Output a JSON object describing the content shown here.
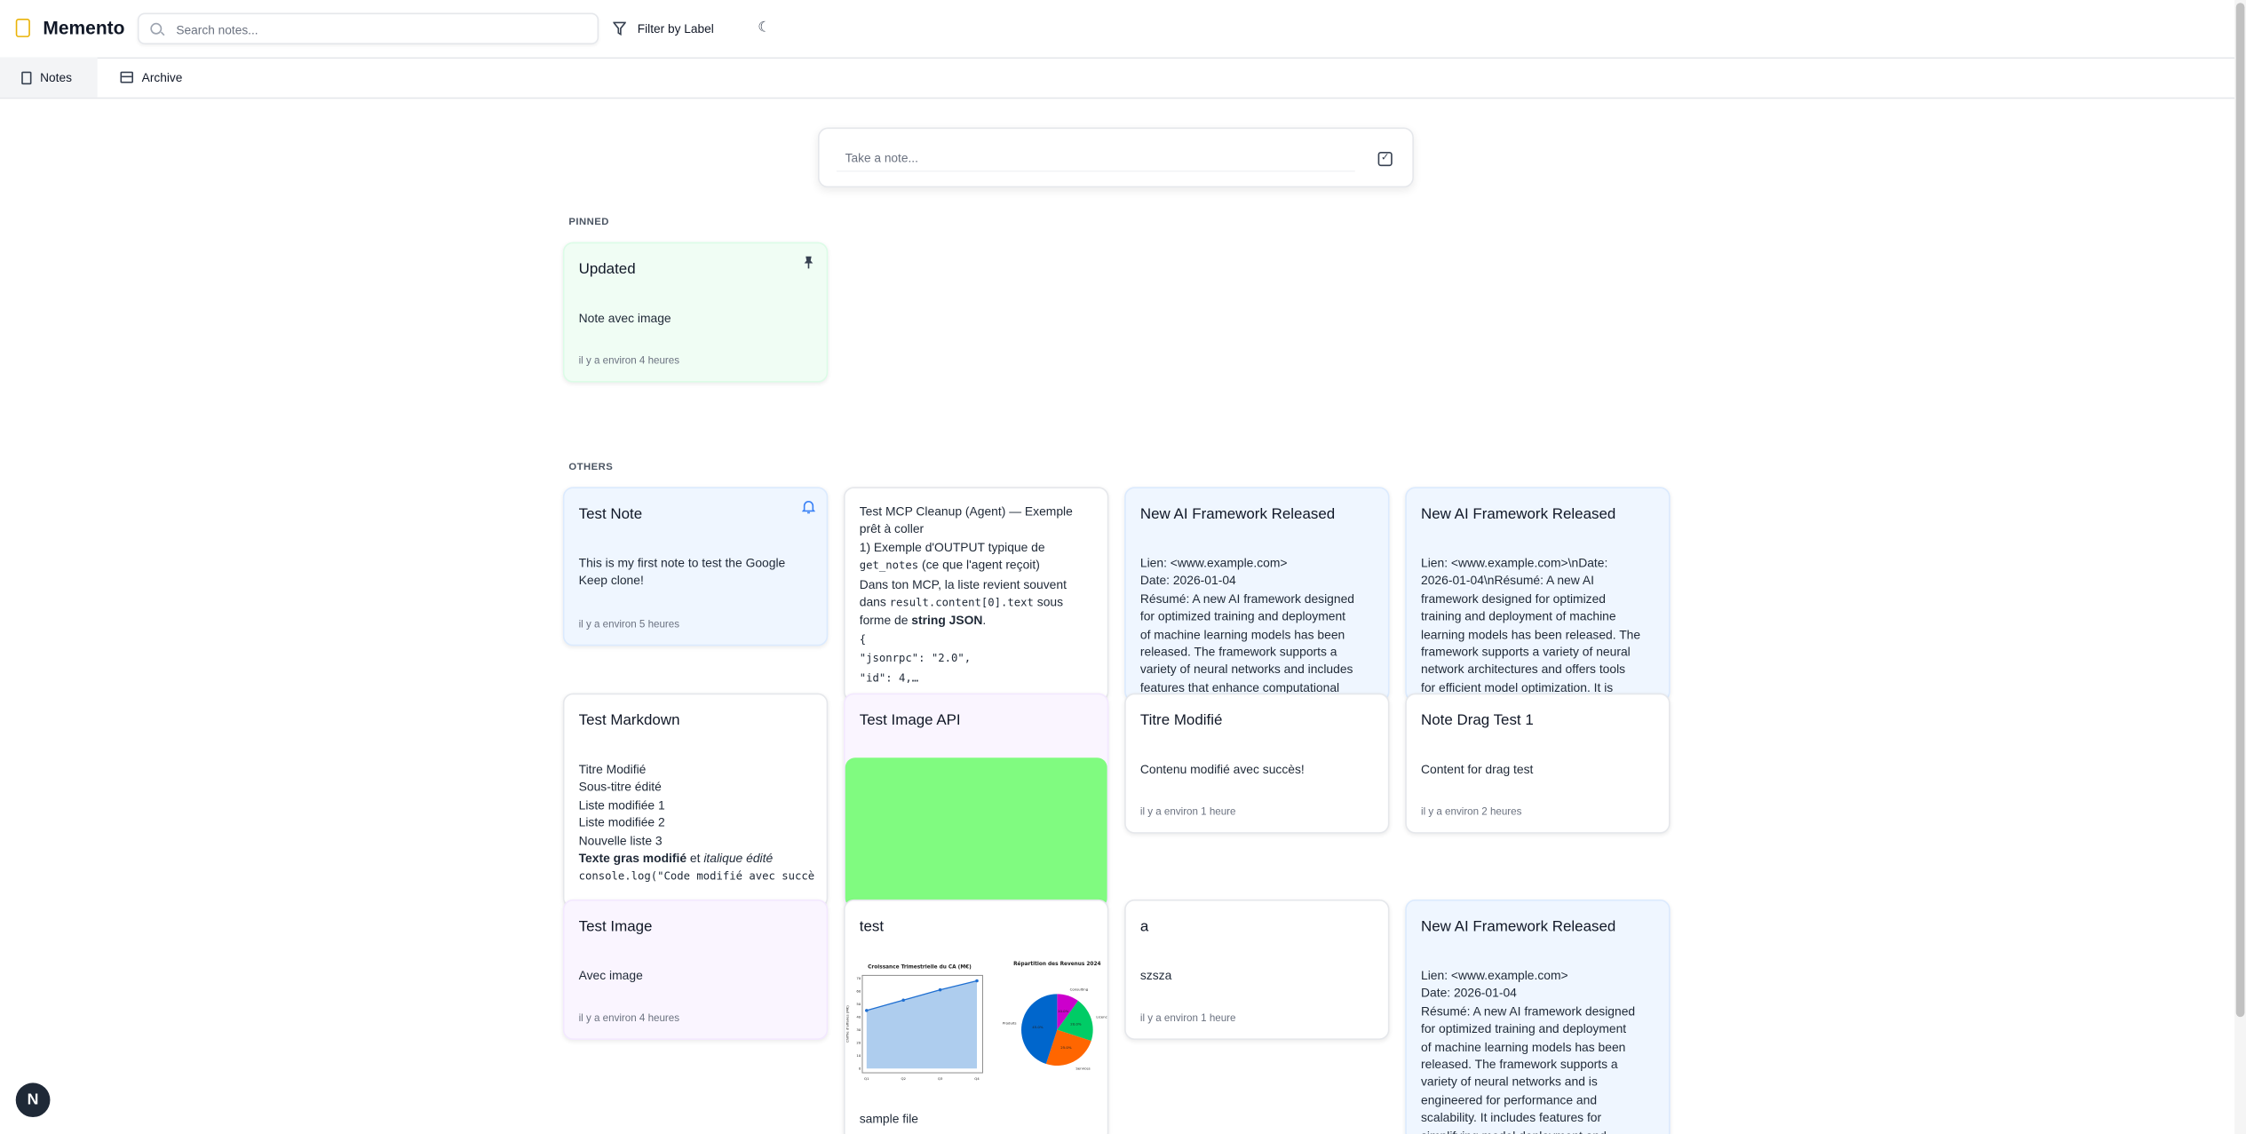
{
  "app": {
    "title": "Memento"
  },
  "header": {
    "search_placeholder": "Search notes...",
    "filter_label": "Filter by Label",
    "theme_icon": "moon-icon"
  },
  "tabs": [
    {
      "label": "Notes",
      "icon": "file-icon",
      "active": true
    },
    {
      "label": "Archive",
      "icon": "archive-icon",
      "active": false
    }
  ],
  "composer": {
    "placeholder": "Take a note...",
    "icon": "checkbox-icon"
  },
  "sections": {
    "pinned": "PINNED",
    "others": "OTHERS"
  },
  "colors": {
    "blue": "#eff6ff",
    "green": "#f0fdf4",
    "purple": "#faf5ff",
    "white": "#ffffff",
    "image_green": "#80fb80",
    "accent": "#3b82f6"
  },
  "pinned": [
    {
      "title": "Updated",
      "icon": "pin-icon",
      "color": "green",
      "body": [
        [
          {
            "t": "Note avec image"
          }
        ]
      ],
      "time": "il y a environ 4 heures"
    }
  ],
  "others": [
    {
      "title": "Test Note",
      "icon": "bell-icon",
      "color": "blue",
      "body": [
        [
          {
            "t": "This is my first note to test the Google"
          }
        ],
        [
          {
            "t": "Keep clone!"
          }
        ]
      ],
      "time": "il y a environ 5 heures"
    },
    {
      "title": "",
      "color": "white",
      "body": [
        [
          {
            "t": "Test MCP Cleanup (Agent) — Exemple"
          }
        ],
        [
          {
            "t": "prêt à coller"
          }
        ],
        [
          {
            "t": "1) Exemple d'OUTPUT typique de"
          }
        ],
        [
          {
            "t": "get_notes",
            "s": "code"
          },
          {
            "t": " (ce que l'agent reçoit)"
          }
        ],
        [
          {
            "t": "Dans ton MCP, la liste revient souvent"
          }
        ],
        [
          {
            "t": "dans "
          },
          {
            "t": "result.content[0].text",
            "s": "code"
          },
          {
            "t": " sous"
          }
        ],
        [
          {
            "t": "forme de "
          },
          {
            "t": "string JSON",
            "s": "b"
          },
          {
            "t": "."
          }
        ],
        [
          {
            "t": "{",
            "s": "code"
          }
        ],
        [
          {
            "t": "  \"jsonrpc\": \"2.0\",",
            "s": "code"
          }
        ],
        [
          {
            "t": "  \"id\": 4,…",
            "s": "code"
          }
        ]
      ]
    },
    {
      "title": "New AI Framework Released",
      "color": "blue",
      "body": [
        [
          {
            "t": "Lien: <www.example.com>"
          }
        ],
        [
          {
            "t": "Date: 2026-01-04"
          }
        ],
        [
          {
            "t": "Résumé: A new AI framework designed"
          }
        ],
        [
          {
            "t": "for optimized training and deployment"
          }
        ],
        [
          {
            "t": "of machine learning models has been"
          }
        ],
        [
          {
            "t": "released. The framework supports a"
          }
        ],
        [
          {
            "t": "variety of neural networks and includes"
          }
        ],
        [
          {
            "t": "features that enhance computational"
          }
        ]
      ]
    },
    {
      "title": "New AI Framework Released",
      "color": "blue",
      "body": [
        [
          {
            "t": "Lien: <www.example.com>\\nDate:"
          }
        ],
        [
          {
            "t": "2026-01-04\\nRésumé: A new AI"
          }
        ],
        [
          {
            "t": "framework designed for optimized"
          }
        ],
        [
          {
            "t": "training and deployment of machine"
          }
        ],
        [
          {
            "t": "learning models has been released. The"
          }
        ],
        [
          {
            "t": "framework supports a variety of neural"
          }
        ],
        [
          {
            "t": "network architectures and offers tools"
          }
        ],
        [
          {
            "t": "for efficient model optimization. It is"
          }
        ]
      ]
    },
    {
      "title": "Test Markdown",
      "color": "white",
      "body": [
        [
          {
            "t": "Titre Modifié"
          }
        ],
        [
          {
            "t": "Sous-titre édité"
          }
        ],
        [
          {
            "t": "Liste modifiée 1"
          }
        ],
        [
          {
            "t": "Liste modifiée 2"
          }
        ],
        [
          {
            "t": "Nouvelle liste 3"
          }
        ],
        [
          {
            "t": "Texte gras modifié",
            "s": "b"
          },
          {
            "t": " et "
          },
          {
            "t": "italique édité",
            "s": "i"
          }
        ],
        [
          {
            "t": "console.log(\"Code modifié avec succès\")",
            "s": "code"
          }
        ]
      ]
    },
    {
      "title": "Test Image API",
      "color": "purple",
      "image": "green-block",
      "body": []
    },
    {
      "title": "Titre Modifié",
      "color": "white",
      "body": [
        [
          {
            "t": "Contenu modifié avec succès!"
          }
        ]
      ],
      "time": "il y a environ 1 heure"
    },
    {
      "title": "Note Drag Test 1",
      "color": "white",
      "body": [
        [
          {
            "t": "Content for drag test"
          }
        ]
      ],
      "time": "il y a environ 2 heures"
    },
    {
      "title": "Test Image",
      "color": "purple",
      "body": [
        [
          {
            "t": "Avec image"
          }
        ]
      ],
      "time": "il y a environ 4 heures"
    },
    {
      "title": "test",
      "color": "white",
      "image": "charts",
      "body": [
        [
          {
            "t": "sample file"
          }
        ]
      ]
    },
    {
      "title": "a",
      "color": "white",
      "body": [
        [
          {
            "t": "szsza"
          }
        ]
      ],
      "time": "il y a environ 1 heure"
    },
    {
      "title": "New AI Framework Released",
      "color": "blue",
      "body": [
        [
          {
            "t": "Lien: <www.example.com>"
          }
        ],
        [
          {
            "t": "Date: 2026-01-04"
          }
        ],
        [
          {
            "t": "Résumé: A new AI framework designed"
          }
        ],
        [
          {
            "t": "for optimized training and deployment"
          }
        ],
        [
          {
            "t": "of machine learning models has been"
          }
        ],
        [
          {
            "t": "released. The framework supports a"
          }
        ],
        [
          {
            "t": "variety of neural networks and is"
          }
        ],
        [
          {
            "t": "engineered for performance and"
          }
        ],
        [
          {
            "t": "scalability. It includes features for"
          }
        ],
        [
          {
            "t": "simplifying model deployment and"
          }
        ]
      ]
    }
  ],
  "embedded_image": {
    "line_title": "Croissance Trimestrielle du CA (M€)",
    "line_ylabel": "Chiffre d'affaires (M€)",
    "line_x": [
      "Q1",
      "Q2",
      "Q3",
      "Q4"
    ],
    "line_y": [
      45,
      53,
      61,
      68
    ],
    "line_yticks": [
      "0",
      "10",
      "20",
      "30",
      "40",
      "50",
      "60",
      "70"
    ],
    "pie_title": "Répartition des Revenus 2024",
    "pie": [
      {
        "label": "Produits",
        "value": 45,
        "pct": "45.0%",
        "color": "#0066cc"
      },
      {
        "label": "Services",
        "value": 25,
        "pct": "25.0%",
        "color": "#ff6600"
      },
      {
        "label": "Licences",
        "value": 20,
        "pct": "20.0%",
        "color": "#00cc66"
      },
      {
        "label": "Consulting",
        "value": 10,
        "pct": "10.0%",
        "color": "#cc00cc"
      }
    ]
  },
  "badge": {
    "label": "N"
  }
}
